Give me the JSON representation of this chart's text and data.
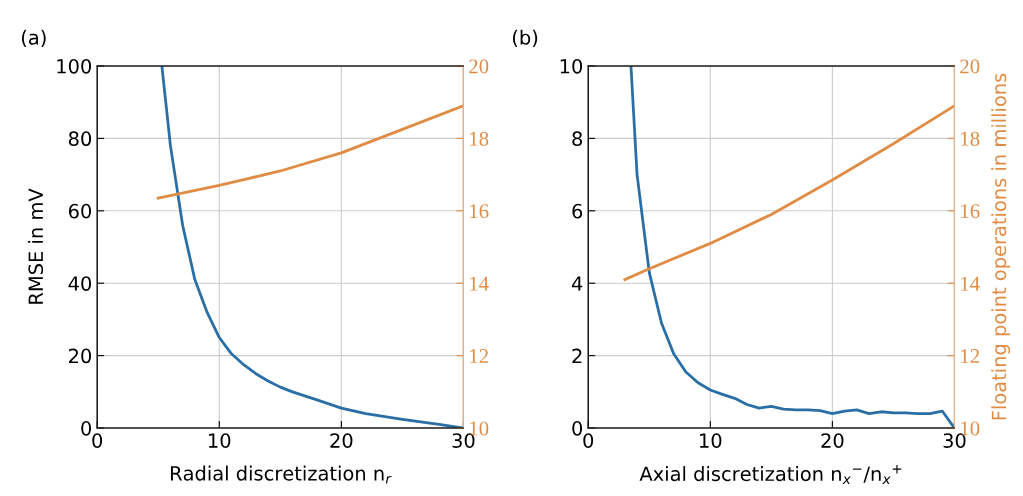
{
  "chart_data": [
    {
      "type": "line",
      "title": "(a)",
      "xlabel": "Radial discretization n$_{r}$",
      "ylabel": "RMSE in mV",
      "xlim": [
        0,
        30
      ],
      "xticks": [
        0,
        10,
        20,
        30
      ],
      "ylim": [
        0,
        100
      ],
      "yticks": [
        0,
        20,
        40,
        60,
        80,
        100
      ],
      "y2lim": [
        10,
        20
      ],
      "y2ticks": [
        10,
        12,
        14,
        16,
        18,
        20
      ],
      "grid": true,
      "marker": "none",
      "line_style": "solid",
      "series": [
        {
          "color": "#2a6ea6",
          "x": [
            5.3,
            6,
            7,
            8,
            9,
            10,
            11,
            12,
            13,
            14,
            15,
            16,
            18,
            20,
            22,
            25,
            28,
            30
          ],
          "values": [
            100,
            78,
            56,
            41,
            32,
            25,
            20.5,
            17.5,
            15,
            13,
            11.3,
            10,
            7.8,
            5.5,
            4,
            2.4,
            1,
            0
          ]
        },
        {
          "color": "#e08c44",
          "axis": "y2",
          "x": [
            5,
            10,
            15,
            20,
            25,
            30
          ],
          "values": [
            16.35,
            16.7,
            17.1,
            17.6,
            18.25,
            18.9
          ]
        }
      ]
    },
    {
      "type": "line",
      "title": "(b)",
      "xlabel": "Axial discretization n$_{x}$$^{−}$/n$_{x}$$^{+}$",
      "y2label": "Floating point operations in millions",
      "xlim": [
        0,
        30
      ],
      "xticks": [
        0,
        10,
        20,
        30
      ],
      "ylim": [
        0,
        10
      ],
      "yticks": [
        0,
        2,
        4,
        6,
        8,
        10
      ],
      "y2lim": [
        10,
        20
      ],
      "y2ticks": [
        10,
        12,
        14,
        16,
        18,
        20
      ],
      "grid": true,
      "marker": "none",
      "line_style": "solid",
      "series": [
        {
          "color": "#2a6ea6",
          "x": [
            3.5,
            4,
            5,
            6,
            7,
            8,
            9,
            10,
            11,
            12,
            13,
            14,
            15,
            16,
            17,
            18,
            19,
            20,
            21,
            22,
            23,
            24,
            25,
            26,
            27,
            28,
            29,
            30
          ],
          "values": [
            10,
            7,
            4.3,
            2.9,
            2.05,
            1.55,
            1.25,
            1.05,
            0.93,
            0.82,
            0.65,
            0.55,
            0.6,
            0.52,
            0.5,
            0.5,
            0.48,
            0.4,
            0.47,
            0.5,
            0.4,
            0.45,
            0.42,
            0.42,
            0.4,
            0.4,
            0.47,
            0
          ]
        },
        {
          "color": "#e08c44",
          "axis": "y2",
          "x": [
            3,
            5,
            10,
            15,
            20,
            25,
            30
          ],
          "values": [
            14.1,
            14.4,
            15.1,
            15.9,
            16.85,
            17.85,
            18.9
          ]
        }
      ]
    }
  ]
}
